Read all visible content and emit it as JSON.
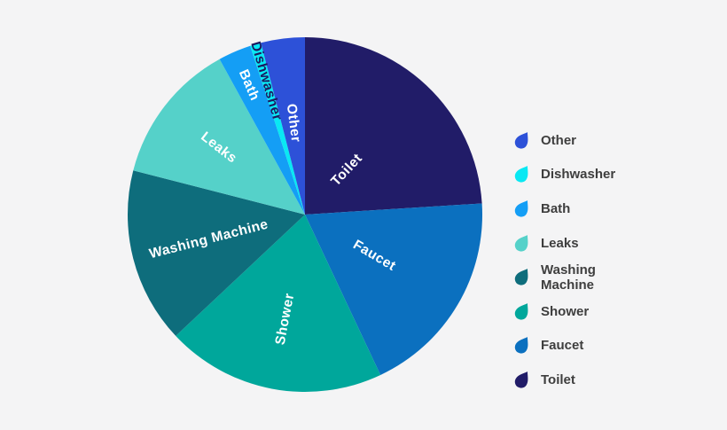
{
  "background_color": "#f4f4f5",
  "chart_data": {
    "type": "pie",
    "title": "",
    "start_angle_deg": 0,
    "direction": "clockwise",
    "value_format": "percent (estimated from slice angles; no numeric labels shown in image)",
    "slices": [
      {
        "label": "Toilet",
        "value": 24,
        "color": "#211c68",
        "label_color": "#ffffff"
      },
      {
        "label": "Faucet",
        "value": 19,
        "color": "#0b70bf",
        "label_color": "#ffffff"
      },
      {
        "label": "Shower",
        "value": 20,
        "color": "#00a79b",
        "label_color": "#ffffff"
      },
      {
        "label": "Washing Machine",
        "value": 16,
        "color": "#0e6d7c",
        "label_color": "#ffffff"
      },
      {
        "label": "Leaks",
        "value": 13,
        "color": "#55d1c9",
        "label_color": "#ffffff"
      },
      {
        "label": "Bath",
        "value": 3,
        "color": "#149ef5",
        "label_color": "#ffffff"
      },
      {
        "label": "Dishwasher",
        "value": 1,
        "color": "#09e8f3",
        "label_color": "#1c1a60"
      },
      {
        "label": "Other",
        "value": 4,
        "color": "#2d51d8",
        "label_color": "#ffffff"
      }
    ],
    "legend": {
      "position": "right",
      "icon": "water-drop",
      "items": [
        "Other",
        "Dishwasher",
        "Bath",
        "Leaks",
        "Washing Machine",
        "Shower",
        "Faucet",
        "Toilet"
      ],
      "text_color": "#3e3e3e"
    }
  }
}
